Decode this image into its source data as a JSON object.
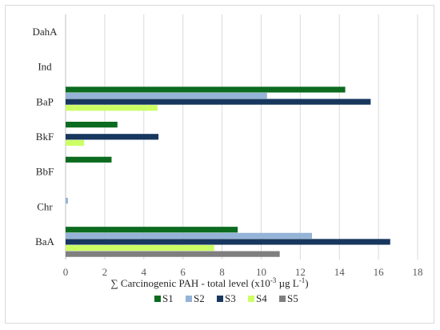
{
  "chart_data": {
    "type": "bar",
    "orientation": "horizontal",
    "categories": [
      "BaA",
      "Chr",
      "BbF",
      "BkF",
      "BaP",
      "Ind",
      "DahA"
    ],
    "series": [
      {
        "name": "S1",
        "color": "#0b6b1f",
        "values": [
          8.8,
          0,
          2.35,
          2.65,
          14.3,
          0,
          0
        ]
      },
      {
        "name": "S2",
        "color": "#95b3d7",
        "values": [
          12.6,
          0.12,
          0,
          0,
          10.3,
          0,
          0
        ]
      },
      {
        "name": "S3",
        "color": "#17375e",
        "values": [
          16.6,
          0,
          0,
          4.75,
          15.6,
          0,
          0
        ]
      },
      {
        "name": "S4",
        "color": "#ccff66",
        "values": [
          7.6,
          0,
          0,
          0.95,
          4.7,
          0,
          0
        ]
      },
      {
        "name": "S5",
        "color": "#7f7f7f",
        "values": [
          10.95,
          0,
          0,
          0,
          0,
          0,
          0
        ]
      }
    ],
    "xlim": [
      0,
      18
    ],
    "xticks": [
      "0",
      "2",
      "4",
      "6",
      "8",
      "10",
      "12",
      "14",
      "16",
      "18"
    ],
    "xlabel": {
      "prefix": "∑ Carcinogenic PAH - total level (x10",
      "exp1": "-3",
      "middle": " µg L",
      "exp2": "-1",
      "suffix": ")"
    },
    "grid": "vertical",
    "legend_position": "bottom"
  }
}
